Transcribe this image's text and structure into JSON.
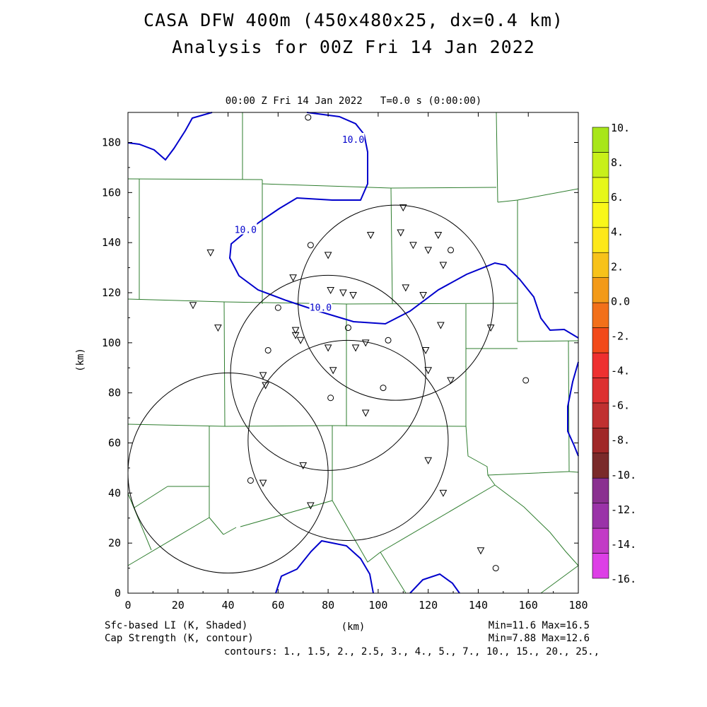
{
  "header": {
    "title": "CASA DFW 400m (450x480x25, dx=0.4 km)",
    "subtitle": "Analysis for 00Z Fri 14 Jan 2022",
    "valid_time": "00:00 Z Fri 14 Jan 2022   T=0.0 s (0:00:00)"
  },
  "footer": {
    "shaded_label": "Sfc-based LI (K, Shaded)",
    "contour_label": "Cap Strength (K, contour)",
    "shaded_minmax": "Min=11.6 Max=16.5",
    "contour_minmax": "Min=7.88 Max=12.6",
    "contours": "contours: 1., 1.5, 2., 2.5, 3., 4., 5., 7., 10., 15., 20., 25.,"
  },
  "colors": {
    "contour": "#0000cc",
    "county_lines": "#2e7d2e",
    "colorbar": [
      "#dd3fe6",
      "#c23bc6",
      "#9a33a8",
      "#8a3090",
      "#7a2a2a",
      "#a02828",
      "#c03030",
      "#dd3030",
      "#ee3030",
      "#f24a1a",
      "#f2701a",
      "#f39a18",
      "#f7c21a",
      "#fde81a",
      "#f9f71a",
      "#e6f71a",
      "#c8f01a",
      "#a8e61a"
    ]
  },
  "chart_data": {
    "type": "contour-map",
    "xlabel": "(km)",
    "ylabel": "(km)",
    "xlim": [
      0,
      180
    ],
    "ylim": [
      0,
      192
    ],
    "xticks": [
      0,
      20,
      40,
      60,
      80,
      100,
      120,
      140,
      160,
      180
    ],
    "yticks": [
      0,
      20,
      40,
      60,
      80,
      100,
      120,
      140,
      160,
      180
    ],
    "contour_labels": [
      {
        "text": "10.0",
        "x": 90,
        "y": 181
      },
      {
        "text": "10.0",
        "x": 47,
        "y": 145
      },
      {
        "text": "10.0",
        "x": 77,
        "y": 114
      }
    ],
    "colorbar_labels": [
      "10.",
      "8.",
      "6.",
      "4.",
      "2.",
      "0.0",
      "-2.",
      "-4.",
      "-6.",
      "-8.",
      "-10.",
      "-12.",
      "-14.",
      "-16."
    ],
    "radar_rings": [
      {
        "center": [
          107,
          116
        ],
        "radius": 39
      },
      {
        "center": [
          80,
          88
        ],
        "radius": 39
      },
      {
        "center": [
          40,
          48
        ],
        "radius": 40
      },
      {
        "center": [
          88,
          61
        ],
        "radius": 40
      }
    ],
    "triangle_stations": [
      [
        110,
        154
      ],
      [
        97,
        143
      ],
      [
        109,
        144
      ],
      [
        114,
        139
      ],
      [
        124,
        143
      ],
      [
        120,
        137
      ],
      [
        126,
        131
      ],
      [
        33,
        136
      ],
      [
        80,
        135
      ],
      [
        111,
        122
      ],
      [
        118,
        119
      ],
      [
        66,
        126
      ],
      [
        81,
        121
      ],
      [
        86,
        120
      ],
      [
        90,
        119
      ],
      [
        26,
        115
      ],
      [
        36,
        106
      ],
      [
        67,
        105
      ],
      [
        67,
        103
      ],
      [
        69,
        101
      ],
      [
        80,
        98
      ],
      [
        91,
        98
      ],
      [
        95,
        100
      ],
      [
        119,
        97
      ],
      [
        125,
        107
      ],
      [
        145,
        106
      ],
      [
        54,
        87
      ],
      [
        55,
        83
      ],
      [
        82,
        89
      ],
      [
        120,
        89
      ],
      [
        129,
        85
      ],
      [
        95,
        72
      ],
      [
        70,
        51
      ],
      [
        120,
        53
      ],
      [
        54,
        44
      ],
      [
        73,
        35
      ],
      [
        126,
        40
      ],
      [
        141,
        17
      ]
    ],
    "circle_stations": [
      [
        72,
        190
      ],
      [
        73,
        139
      ],
      [
        60,
        114
      ],
      [
        88,
        106
      ],
      [
        56,
        97
      ],
      [
        104,
        101
      ],
      [
        102,
        82
      ],
      [
        81,
        78
      ],
      [
        49,
        45
      ],
      [
        159,
        85
      ],
      [
        147,
        10
      ],
      [
        129,
        137
      ]
    ]
  }
}
